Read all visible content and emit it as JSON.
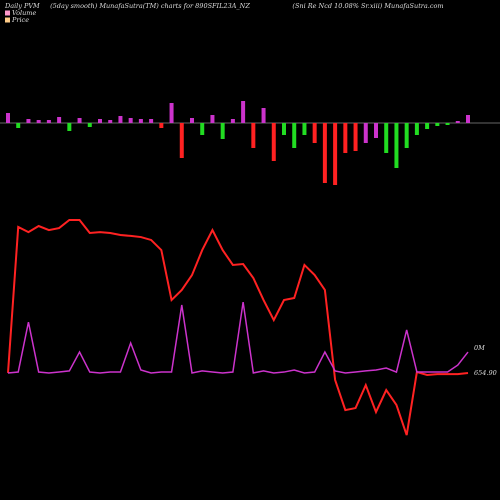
{
  "chart_data": {
    "type": "pvm",
    "title_left": "Daily PVM",
    "title_middle": "(5day smooth) MunafaSutra(TM) charts for 890SFIL23A_NZ",
    "title_right": "(Sni Re   Ncd 10.08% Sr.xiii) MunafaSutra.com",
    "legend": [
      {
        "name": "Volume",
        "color": "#ff99cc"
      },
      {
        "name": "Price",
        "color": "#ffcc88"
      }
    ],
    "volume_label": "0M",
    "price_label": "654.90",
    "categories": [
      null,
      null,
      null,
      null,
      null,
      null,
      null,
      null,
      null,
      null,
      null,
      null,
      null,
      null,
      null,
      null,
      null,
      null,
      null,
      null,
      null,
      null,
      null,
      null,
      null,
      null,
      null,
      null,
      null,
      null,
      null,
      null,
      null,
      null,
      null,
      null,
      null,
      null,
      null,
      null,
      null,
      null,
      null,
      null,
      null,
      null
    ],
    "bars": {
      "ylim": [
        -65,
        25
      ],
      "values": [
        10,
        -5,
        4,
        3,
        3,
        6,
        -8,
        5,
        -4,
        4,
        3,
        7,
        5,
        4,
        4,
        -5,
        20,
        -35,
        5,
        -12,
        8,
        -16,
        4,
        22,
        -25,
        15,
        -38,
        -12,
        -25,
        -12,
        -20,
        -60,
        -62,
        -30,
        -28,
        -20,
        -15,
        -30,
        -45,
        -25,
        -12,
        -6,
        -3,
        -2,
        2,
        8
      ],
      "colors": [
        "#cc33cc",
        "#22dd22",
        "#cc33cc",
        "#cc33cc",
        "#cc33cc",
        "#cc33cc",
        "#22dd22",
        "#cc33cc",
        "#22dd22",
        "#cc33cc",
        "#cc33cc",
        "#cc33cc",
        "#cc33cc",
        "#cc33cc",
        "#cc33cc",
        "#ff2222",
        "#cc33cc",
        "#ff2222",
        "#cc33cc",
        "#22dd22",
        "#cc33cc",
        "#22dd22",
        "#cc33cc",
        "#cc33cc",
        "#ff2222",
        "#cc33cc",
        "#ff2222",
        "#22dd22",
        "#22dd22",
        "#22dd22",
        "#ff2222",
        "#ff2222",
        "#ff2222",
        "#ff2222",
        "#ff2222",
        "#cc33cc",
        "#cc33cc",
        "#22dd22",
        "#22dd22",
        "#22dd22",
        "#22dd22",
        "#22dd22",
        "#22dd22",
        "#22dd22",
        "#cc33cc",
        "#cc33cc"
      ]
    },
    "ylim": [
      0,
      100
    ],
    "series": [
      {
        "name": "Price",
        "color": "#ff2222",
        "values": [
          29.8,
          94.7,
          92.4,
          95.1,
          93.3,
          94.2,
          97.8,
          97.8,
          92.0,
          92.4,
          92.0,
          91.1,
          90.7,
          90.2,
          88.9,
          84.4,
          62.2,
          66.7,
          73.3,
          84.4,
          93.3,
          84.4,
          77.8,
          78.2,
          72.0,
          62.2,
          53.3,
          62.2,
          63.1,
          77.8,
          73.3,
          66.7,
          26.7,
          13.3,
          14.2,
          24.4,
          12.4,
          22.2,
          15.6,
          2.2,
          30.2,
          28.9,
          29.3,
          29.3,
          29.3,
          29.8
        ]
      },
      {
        "name": "Volume",
        "color": "#cc33cc",
        "values": [
          29.8,
          30.2,
          52.4,
          30.2,
          29.8,
          30.2,
          30.7,
          39.1,
          30.2,
          29.8,
          30.2,
          30.2,
          43.1,
          31.1,
          29.8,
          30.2,
          30.2,
          60.0,
          29.8,
          30.7,
          30.2,
          29.8,
          30.2,
          61.3,
          29.8,
          30.7,
          29.8,
          30.2,
          31.1,
          29.8,
          30.2,
          39.1,
          30.7,
          29.8,
          30.2,
          30.7,
          31.1,
          32.0,
          30.2,
          48.9,
          30.2,
          30.2,
          30.2,
          30.2,
          33.3,
          39.1
        ]
      }
    ]
  }
}
